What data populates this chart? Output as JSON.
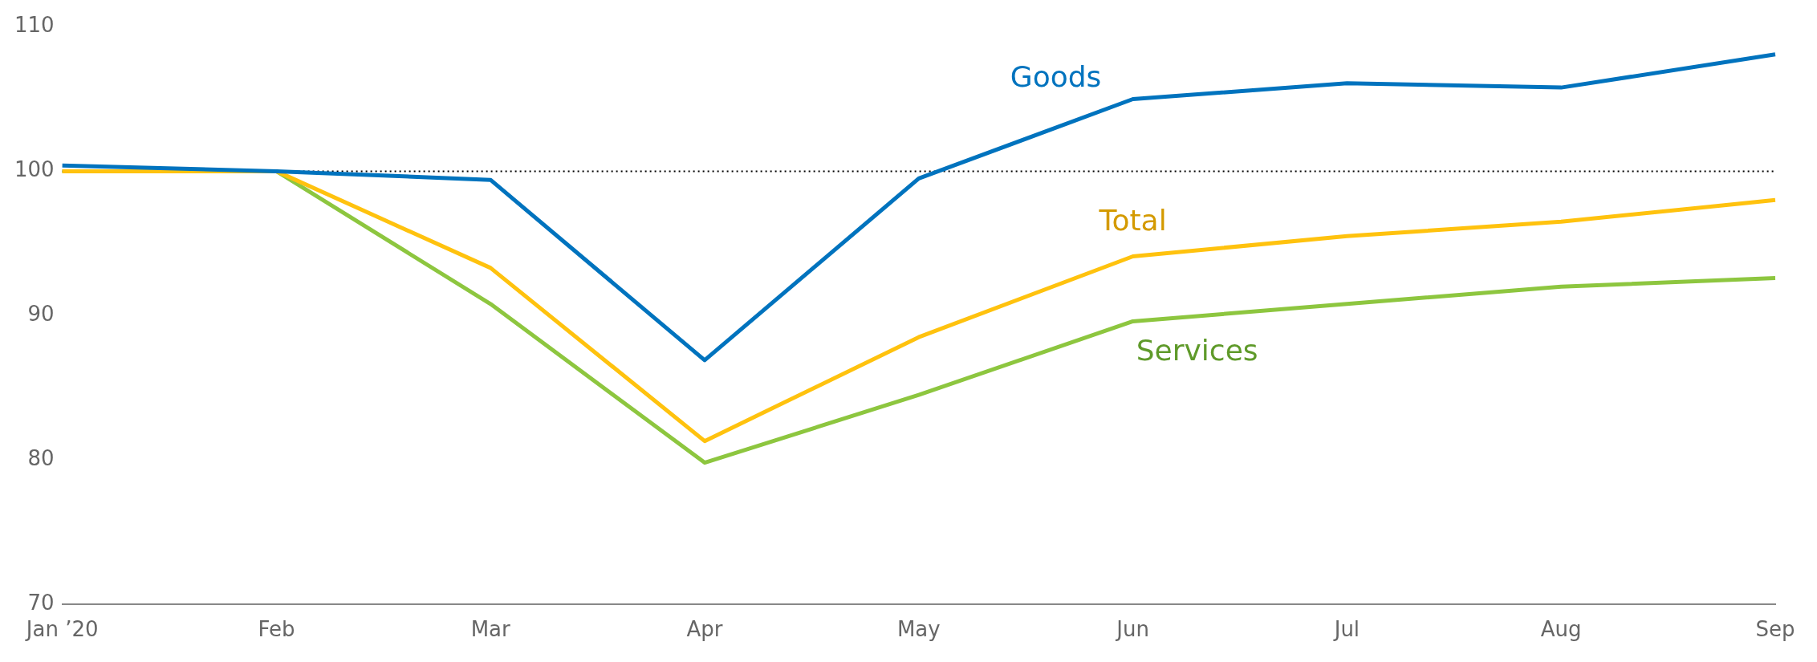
{
  "chart_data": {
    "type": "line",
    "categories": [
      "Jan ’20",
      "Feb",
      "Mar",
      "Apr",
      "May",
      "Jun",
      "Jul",
      "Aug",
      "Sep"
    ],
    "series": [
      {
        "name": "Goods",
        "color": "#0073be",
        "values": [
          100.4,
          100,
          99.4,
          86.9,
          99.5,
          105,
          106.1,
          105.8,
          108.1
        ]
      },
      {
        "name": "Total",
        "color": "#ffc20e",
        "values": [
          100,
          100,
          93.3,
          81.3,
          88.5,
          94.1,
          95.5,
          96.5,
          98
        ]
      },
      {
        "name": "Services",
        "color": "#8dc63f",
        "values": [
          100,
          100,
          90.8,
          79.8,
          84.5,
          89.6,
          90.8,
          92,
          92.6
        ]
      }
    ],
    "ylim": [
      70,
      110
    ],
    "yticks": [
      70,
      80,
      90,
      100,
      110
    ],
    "grid": false,
    "legend": false,
    "marker": "none",
    "line_style": "solid",
    "ref_lines": [
      {
        "axis": "y",
        "value": 100,
        "color": "#000000",
        "line_style": "dotted"
      }
    ]
  }
}
